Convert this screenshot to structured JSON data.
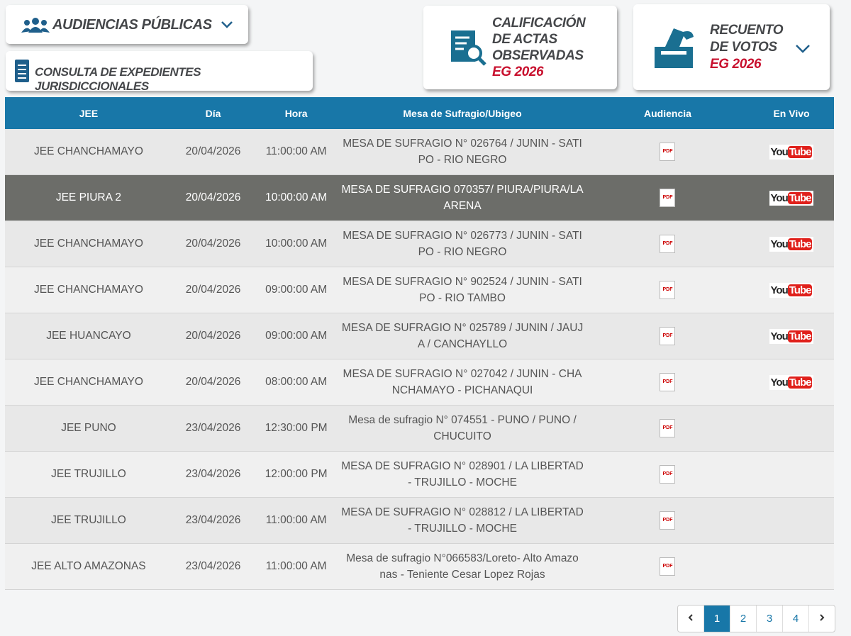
{
  "header": {
    "audiencias": "AUDIENCIAS PÚBLICAS",
    "consulta": "CONSULTA DE EXPEDIENTES JURISDICCIONALES",
    "calificacion": {
      "lines": [
        "CALIFICACIÓN",
        "DE ACTAS",
        "OBSERVADAS"
      ],
      "tag": "EG 2026"
    },
    "recuento": {
      "lines": [
        "RECUENTO",
        "DE VOTOS"
      ],
      "tag": "EG 2026"
    }
  },
  "table": {
    "columns": [
      "JEE",
      "Día",
      "Hora",
      "Mesa de Sufragio/Ubigeo",
      "Audiencia",
      "En Vivo"
    ],
    "pdf_label": "PDF",
    "youtube_label": [
      "You",
      "Tube"
    ],
    "rows": [
      {
        "jee": "JEE CHANCHAMAYO",
        "dia": "20/04/2026",
        "hora": "11:00:00 AM",
        "mesa": [
          "MESA DE SUFRAGIO N° 026764 / JUNIN - SATI",
          "PO - RIO NEGRO"
        ],
        "youtube": true
      },
      {
        "jee": "JEE PIURA 2",
        "dia": "20/04/2026",
        "hora": "10:00:00 AM",
        "mesa": [
          "MESA DE SUFRAGIO 070357/ PIURA/PIURA/LA",
          "ARENA"
        ],
        "youtube": true,
        "selected": true
      },
      {
        "jee": "JEE CHANCHAMAYO",
        "dia": "20/04/2026",
        "hora": "10:00:00 AM",
        "mesa": [
          "MESA DE SUFRAGIO N° 026773 / JUNIN - SATI",
          "PO - RIO NEGRO"
        ],
        "youtube": true
      },
      {
        "jee": "JEE CHANCHAMAYO",
        "dia": "20/04/2026",
        "hora": "09:00:00 AM",
        "mesa": [
          "MESA DE SUFRAGIO N° 902524 / JUNIN - SATI",
          "PO - RIO TAMBO"
        ],
        "youtube": true
      },
      {
        "jee": "JEE HUANCAYO",
        "dia": "20/04/2026",
        "hora": "09:00:00 AM",
        "mesa": [
          "MESA DE SUFRAGIO N° 025789 / JUNIN / JAUJ",
          "A / CANCHAYLLO"
        ],
        "youtube": true
      },
      {
        "jee": "JEE CHANCHAMAYO",
        "dia": "20/04/2026",
        "hora": "08:00:00 AM",
        "mesa": [
          "MESA DE SUFRAGIO N° 027042 / JUNIN - CHA",
          "NCHAMAYO - PICHANAQUI"
        ],
        "youtube": true
      },
      {
        "jee": "JEE PUNO",
        "dia": "23/04/2026",
        "hora": "12:30:00 PM",
        "mesa": [
          "Mesa de sufragio N° 074551 - PUNO / PUNO /",
          "CHUCUITO"
        ],
        "youtube": false
      },
      {
        "jee": "JEE TRUJILLO",
        "dia": "23/04/2026",
        "hora": "12:00:00 PM",
        "mesa": [
          "MESA DE SUFRAGIO N° 028901 / LA LIBERTAD",
          "- TRUJILLO - MOCHE"
        ],
        "youtube": false
      },
      {
        "jee": "JEE TRUJILLO",
        "dia": "23/04/2026",
        "hora": "11:00:00 AM",
        "mesa": [
          "MESA DE SUFRAGIO N° 028812 / LA LIBERTAD",
          "- TRUJILLO - MOCHE"
        ],
        "youtube": false
      },
      {
        "jee": "JEE ALTO AMAZONAS",
        "dia": "23/04/2026",
        "hora": "11:00:00 AM",
        "mesa": [
          "Mesa de sufragio N°066583/Loreto- Alto Amazo",
          "nas - Teniente Cesar Lopez Rojas"
        ],
        "youtube": false
      }
    ]
  },
  "pagination": {
    "pages": [
      "1",
      "2",
      "3",
      "4"
    ],
    "active": 0
  }
}
